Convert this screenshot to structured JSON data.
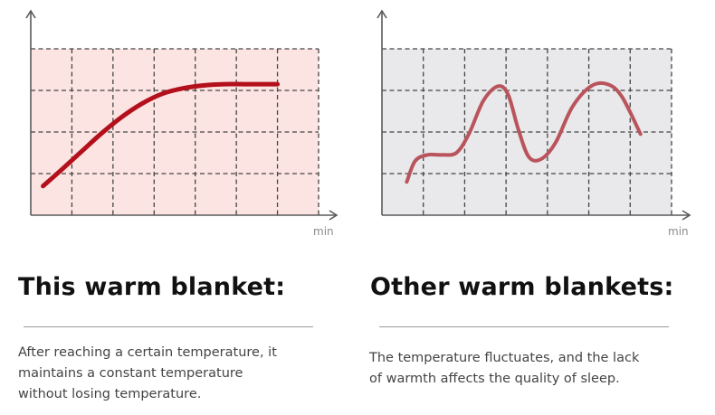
{
  "colors": {
    "left_bg": "#fce4e2",
    "right_bg": "#e9e8ea",
    "left_line": "#b3101c",
    "right_line": "#b9545c",
    "grid": "#454545",
    "axis": "#5a5a5a"
  },
  "chart_data": [
    {
      "type": "line",
      "title": "",
      "xlabel": "min",
      "ylabel": "",
      "grid": true,
      "xlim": [
        0,
        7
      ],
      "ylim": [
        0,
        4
      ],
      "series": [
        {
          "x": [
            0.3,
            0.7,
            1.2,
            1.7,
            2.2,
            2.7,
            3.2,
            3.7,
            4.2,
            4.7,
            5.2,
            5.7,
            6.0
          ],
          "y": [
            0.7,
            1.05,
            1.5,
            1.95,
            2.35,
            2.68,
            2.92,
            3.05,
            3.12,
            3.15,
            3.15,
            3.15,
            3.15
          ]
        }
      ]
    },
    {
      "type": "line",
      "title": "",
      "xlabel": "min",
      "ylabel": "",
      "grid": true,
      "xlim": [
        0,
        7
      ],
      "ylim": [
        0,
        4
      ],
      "series": [
        {
          "x": [
            0.6,
            0.8,
            1.1,
            1.45,
            1.8,
            2.1,
            2.45,
            2.8,
            3.05,
            3.3,
            3.55,
            3.85,
            4.2,
            4.6,
            5.05,
            5.45,
            5.8,
            6.25
          ],
          "y": [
            0.8,
            1.3,
            1.45,
            1.45,
            1.5,
            1.95,
            2.75,
            3.1,
            2.9,
            2.05,
            1.4,
            1.35,
            1.75,
            2.6,
            3.1,
            3.15,
            2.85,
            1.95
          ]
        }
      ]
    }
  ],
  "left": {
    "heading": "This warm blanket:",
    "desc_lines": [
      "After reaching a certain temperature, it",
      "maintains a constant temperature",
      "without losing temperature."
    ]
  },
  "right": {
    "heading": "Other warm blankets:",
    "desc_lines": [
      "The temperature fluctuates, and the lack",
      "of warmth affects the quality of sleep."
    ]
  }
}
